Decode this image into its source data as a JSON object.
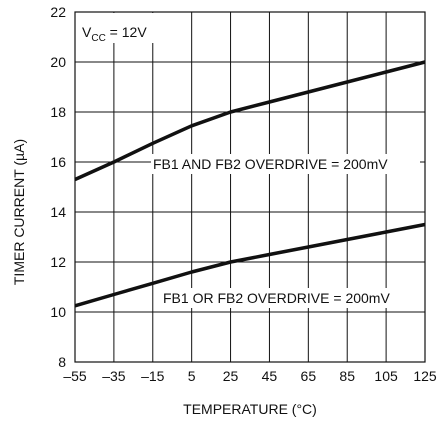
{
  "chart_data": {
    "type": "line",
    "xlabel": "TEMPERATURE (°C)",
    "ylabel": "TIMER CURRENT (µA)",
    "xlim": [
      -55,
      125
    ],
    "ylim": [
      8,
      22
    ],
    "x_ticks": [
      -55,
      -35,
      -15,
      5,
      25,
      45,
      65,
      85,
      105,
      125
    ],
    "x_tick_labels": [
      "–55",
      "–35",
      "–15",
      "5",
      "25",
      "45",
      "65",
      "85",
      "105",
      "125"
    ],
    "y_ticks": [
      8,
      10,
      12,
      14,
      16,
      18,
      20,
      22
    ],
    "y_tick_labels": [
      "8",
      "10",
      "12",
      "14",
      "16",
      "18",
      "20",
      "22"
    ],
    "grid": true,
    "condition": {
      "main": "V",
      "sub": "CC",
      "tail": " = 12V"
    },
    "series": [
      {
        "name": "FB1 AND FB2 OVERDRIVE = 200mV",
        "x": [
          -55,
          -35,
          -15,
          5,
          25,
          45,
          65,
          85,
          105,
          125
        ],
        "y": [
          15.3,
          16.0,
          16.75,
          17.45,
          18.0,
          18.4,
          18.8,
          19.2,
          19.6,
          20.0
        ]
      },
      {
        "name": "FB1 OR FB2 OVERDRIVE = 200mV",
        "x": [
          -55,
          -35,
          -15,
          5,
          25,
          45,
          65,
          85,
          105,
          125
        ],
        "y": [
          10.25,
          10.7,
          11.15,
          11.6,
          12.0,
          12.3,
          12.6,
          12.9,
          13.2,
          13.5
        ]
      }
    ],
    "line_color": "#111111",
    "grid_color": "#111111"
  }
}
